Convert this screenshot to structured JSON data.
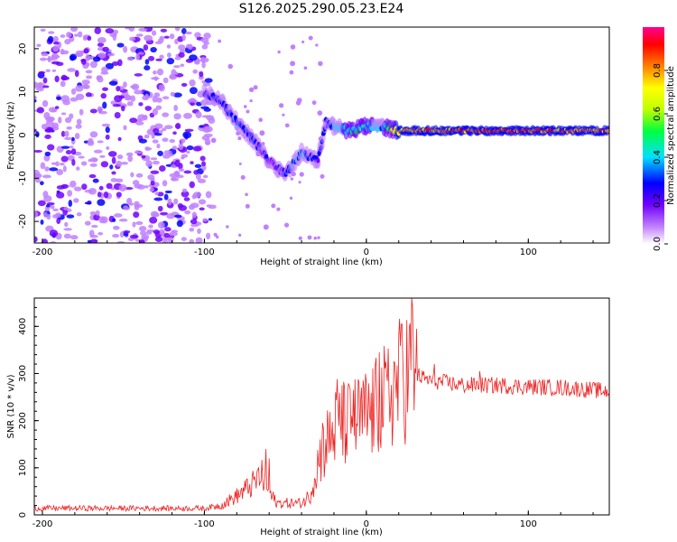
{
  "title": "S126.2025.290.05.23.E24",
  "chart_data": [
    {
      "type": "heatmap",
      "name": "spectrogram",
      "xlabel": "Height of straight line (km)",
      "ylabel": "Frequency (Hz)",
      "xlim": [
        -205,
        150
      ],
      "ylim": [
        -25,
        25
      ],
      "xticks": [
        -200,
        -100,
        0,
        100
      ],
      "xtick_labels": [
        "-200",
        "-100",
        "0",
        "100"
      ],
      "yticks": [
        -20,
        -10,
        0,
        10,
        20
      ],
      "ytick_labels": [
        "-20",
        "-10",
        "0",
        "10",
        "20"
      ],
      "colorbar": {
        "label": "Normalized spectral amplitude",
        "range": [
          0,
          1
        ],
        "ticks": [
          0.0,
          0.2,
          0.4,
          0.6,
          0.8
        ],
        "tick_labels": [
          "0.0",
          "0.2",
          "0.4",
          "0.6",
          "0.8"
        ],
        "colors": [
          "#ffffff",
          "#c080ff",
          "#7000ff",
          "#0000ff",
          "#00e0ff",
          "#00ff40",
          "#c0ff00",
          "#ffff00",
          "#ff8000",
          "#ff0000",
          "#ff0090"
        ]
      },
      "ridge": {
        "x": [
          -100,
          -90,
          -80,
          -70,
          -60,
          -50,
          -40,
          -30,
          -25,
          -20,
          -10,
          0,
          10,
          20,
          40,
          60,
          80,
          100,
          120,
          150
        ],
        "y": [
          10,
          8,
          3,
          -1,
          -6,
          -9,
          -4,
          -6,
          3,
          2,
          1,
          2,
          2,
          1,
          1,
          1,
          1,
          1,
          1,
          1
        ],
        "amplitude": [
          0.3,
          0.3,
          0.35,
          0.3,
          0.25,
          0.3,
          0.4,
          0.3,
          0.3,
          0.4,
          0.45,
          0.45,
          0.4,
          0.8,
          0.85,
          0.85,
          0.9,
          0.9,
          0.85,
          0.85
        ]
      },
      "noise_region_x": [
        -205,
        -95
      ]
    },
    {
      "type": "line",
      "name": "snr",
      "xlabel": "Height of straight line (km)",
      "ylabel": "SNR (10 * v/v)",
      "xlim": [
        -205,
        150
      ],
      "ylim": [
        0,
        460
      ],
      "xticks": [
        -200,
        -100,
        0,
        100
      ],
      "xtick_labels": [
        "-200",
        "-100",
        "0",
        "100"
      ],
      "yticks": [
        0,
        100,
        200,
        300,
        400
      ],
      "ytick_labels": [
        "0",
        "100",
        "200",
        "300",
        "400"
      ],
      "line_color": "#ee2222",
      "envelope": {
        "x": [
          -205,
          -150,
          -100,
          -90,
          -80,
          -70,
          -65,
          -60,
          -55,
          -40,
          -35,
          -30,
          -25,
          -20,
          -15,
          -10,
          -5,
          0,
          5,
          10,
          20,
          25,
          28,
          30,
          35,
          40,
          50,
          60,
          80,
          100,
          120,
          140,
          150
        ],
        "y": [
          14,
          14,
          14,
          20,
          40,
          65,
          85,
          45,
          25,
          25,
          40,
          110,
          150,
          180,
          190,
          195,
          200,
          210,
          220,
          240,
          280,
          300,
          320,
          300,
          290,
          285,
          280,
          275,
          275,
          272,
          270,
          265,
          262
        ]
      },
      "spikes": [
        {
          "x": -62,
          "y": 140
        },
        {
          "x": -60,
          "y": 120
        },
        {
          "x": -27,
          "y": 195
        },
        {
          "x": -18,
          "y": 288
        },
        {
          "x": -15,
          "y": 275
        },
        {
          "x": -8,
          "y": 265
        },
        {
          "x": 8,
          "y": 345
        },
        {
          "x": 12,
          "y": 325
        },
        {
          "x": 20,
          "y": 380
        },
        {
          "x": 22,
          "y": 405
        },
        {
          "x": 28,
          "y": 460
        },
        {
          "x": 31,
          "y": 395
        },
        {
          "x": 42,
          "y": 320
        },
        {
          "x": 70,
          "y": 305
        }
      ]
    }
  ]
}
